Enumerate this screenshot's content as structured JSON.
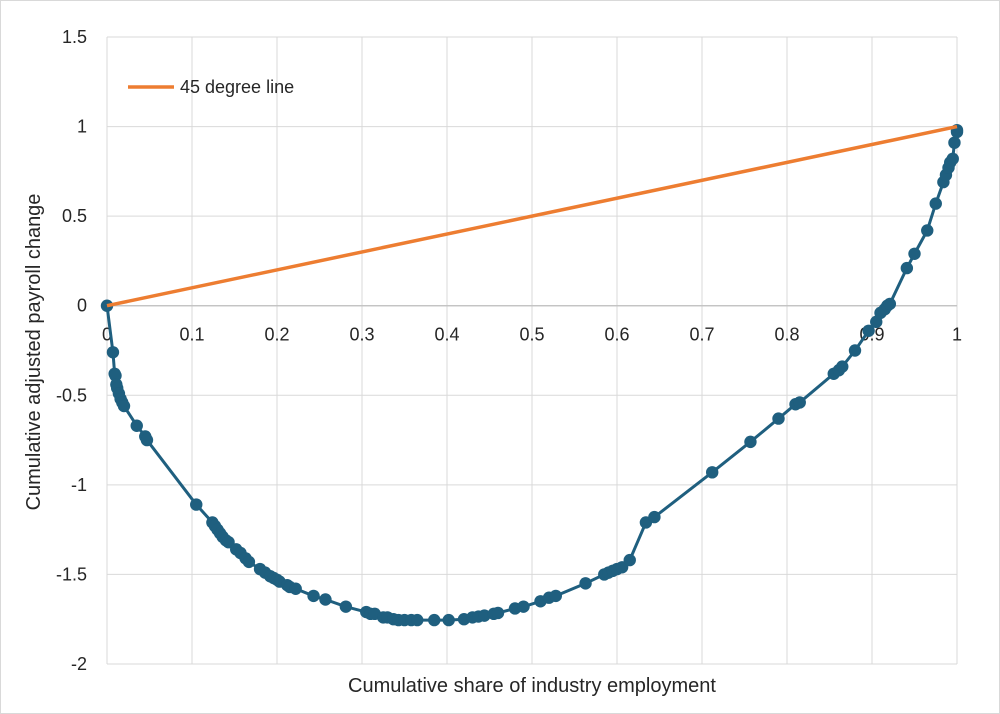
{
  "chart_data": {
    "type": "scatter",
    "title": "",
    "xlabel": "Cumulative share of industry employment",
    "ylabel": "Cumulative adjusted payroll change",
    "xlim": [
      0,
      1
    ],
    "ylim": [
      -2,
      1.5
    ],
    "x_ticks": [
      "0",
      "0.1",
      "0.2",
      "0.3",
      "0.4",
      "0.5",
      "0.6",
      "0.7",
      "0.8",
      "0.9",
      "1"
    ],
    "x_tick_values": [
      0,
      0.1,
      0.2,
      0.3,
      0.4,
      0.5,
      0.6,
      0.7,
      0.8,
      0.9,
      1
    ],
    "y_ticks": [
      "1.5",
      "1",
      "0.5",
      "0",
      "-0.5",
      "-1",
      "-1.5",
      "-2"
    ],
    "y_tick_values": [
      1.5,
      1,
      0.5,
      0,
      -0.5,
      -1,
      -1.5,
      -2
    ],
    "grid": true,
    "legend_position": "top-left",
    "series": [
      {
        "name": "45 degree line",
        "color": "#ed7d31",
        "style": "line",
        "points": [
          [
            0,
            0
          ],
          [
            1,
            1
          ]
        ]
      },
      {
        "name": "",
        "color": "#1f5f7f",
        "style": "line-markers",
        "points": [
          [
            0,
            0
          ],
          [
            0.007,
            -0.26
          ],
          [
            0.009,
            -0.38
          ],
          [
            0.01,
            -0.39
          ],
          [
            0.011,
            -0.44
          ],
          [
            0.012,
            -0.46
          ],
          [
            0.014,
            -0.49
          ],
          [
            0.016,
            -0.52
          ],
          [
            0.018,
            -0.54
          ],
          [
            0.02,
            -0.56
          ],
          [
            0.035,
            -0.67
          ],
          [
            0.045,
            -0.73
          ],
          [
            0.047,
            -0.75
          ],
          [
            0.105,
            -1.11
          ],
          [
            0.124,
            -1.21
          ],
          [
            0.127,
            -1.23
          ],
          [
            0.13,
            -1.25
          ],
          [
            0.133,
            -1.27
          ],
          [
            0.136,
            -1.29
          ],
          [
            0.14,
            -1.31
          ],
          [
            0.143,
            -1.32
          ],
          [
            0.152,
            -1.36
          ],
          [
            0.157,
            -1.38
          ],
          [
            0.163,
            -1.41
          ],
          [
            0.167,
            -1.43
          ],
          [
            0.18,
            -1.47
          ],
          [
            0.186,
            -1.49
          ],
          [
            0.192,
            -1.51
          ],
          [
            0.196,
            -1.52
          ],
          [
            0.2,
            -1.53
          ],
          [
            0.203,
            -1.54
          ],
          [
            0.212,
            -1.56
          ],
          [
            0.215,
            -1.57
          ],
          [
            0.222,
            -1.58
          ],
          [
            0.243,
            -1.62
          ],
          [
            0.257,
            -1.64
          ],
          [
            0.281,
            -1.68
          ],
          [
            0.305,
            -1.71
          ],
          [
            0.31,
            -1.72
          ],
          [
            0.315,
            -1.72
          ],
          [
            0.325,
            -1.74
          ],
          [
            0.33,
            -1.74
          ],
          [
            0.337,
            -1.75
          ],
          [
            0.343,
            -1.755
          ],
          [
            0.35,
            -1.755
          ],
          [
            0.358,
            -1.755
          ],
          [
            0.365,
            -1.755
          ],
          [
            0.385,
            -1.755
          ],
          [
            0.402,
            -1.755
          ],
          [
            0.42,
            -1.75
          ],
          [
            0.43,
            -1.74
          ],
          [
            0.437,
            -1.735
          ],
          [
            0.444,
            -1.73
          ],
          [
            0.455,
            -1.72
          ],
          [
            0.46,
            -1.715
          ],
          [
            0.48,
            -1.69
          ],
          [
            0.49,
            -1.68
          ],
          [
            0.51,
            -1.65
          ],
          [
            0.52,
            -1.63
          ],
          [
            0.528,
            -1.62
          ],
          [
            0.563,
            -1.55
          ],
          [
            0.585,
            -1.5
          ],
          [
            0.59,
            -1.49
          ],
          [
            0.595,
            -1.48
          ],
          [
            0.6,
            -1.47
          ],
          [
            0.606,
            -1.46
          ],
          [
            0.615,
            -1.42
          ],
          [
            0.634,
            -1.21
          ],
          [
            0.644,
            -1.18
          ],
          [
            0.712,
            -0.93
          ],
          [
            0.757,
            -0.76
          ],
          [
            0.79,
            -0.63
          ],
          [
            0.81,
            -0.55
          ],
          [
            0.815,
            -0.54
          ],
          [
            0.855,
            -0.38
          ],
          [
            0.861,
            -0.36
          ],
          [
            0.865,
            -0.34
          ],
          [
            0.88,
            -0.25
          ],
          [
            0.896,
            -0.14
          ],
          [
            0.905,
            -0.09
          ],
          [
            0.91,
            -0.04
          ],
          [
            0.915,
            -0.02
          ],
          [
            0.918,
            0.0
          ],
          [
            0.921,
            0.01
          ],
          [
            0.941,
            0.21
          ],
          [
            0.95,
            0.29
          ],
          [
            0.965,
            0.42
          ],
          [
            0.975,
            0.57
          ],
          [
            0.984,
            0.69
          ],
          [
            0.987,
            0.73
          ],
          [
            0.99,
            0.77
          ],
          [
            0.992,
            0.8
          ],
          [
            0.995,
            0.82
          ],
          [
            0.997,
            0.91
          ],
          [
            1.0,
            0.97
          ],
          [
            1.0,
            0.98
          ]
        ]
      }
    ]
  }
}
